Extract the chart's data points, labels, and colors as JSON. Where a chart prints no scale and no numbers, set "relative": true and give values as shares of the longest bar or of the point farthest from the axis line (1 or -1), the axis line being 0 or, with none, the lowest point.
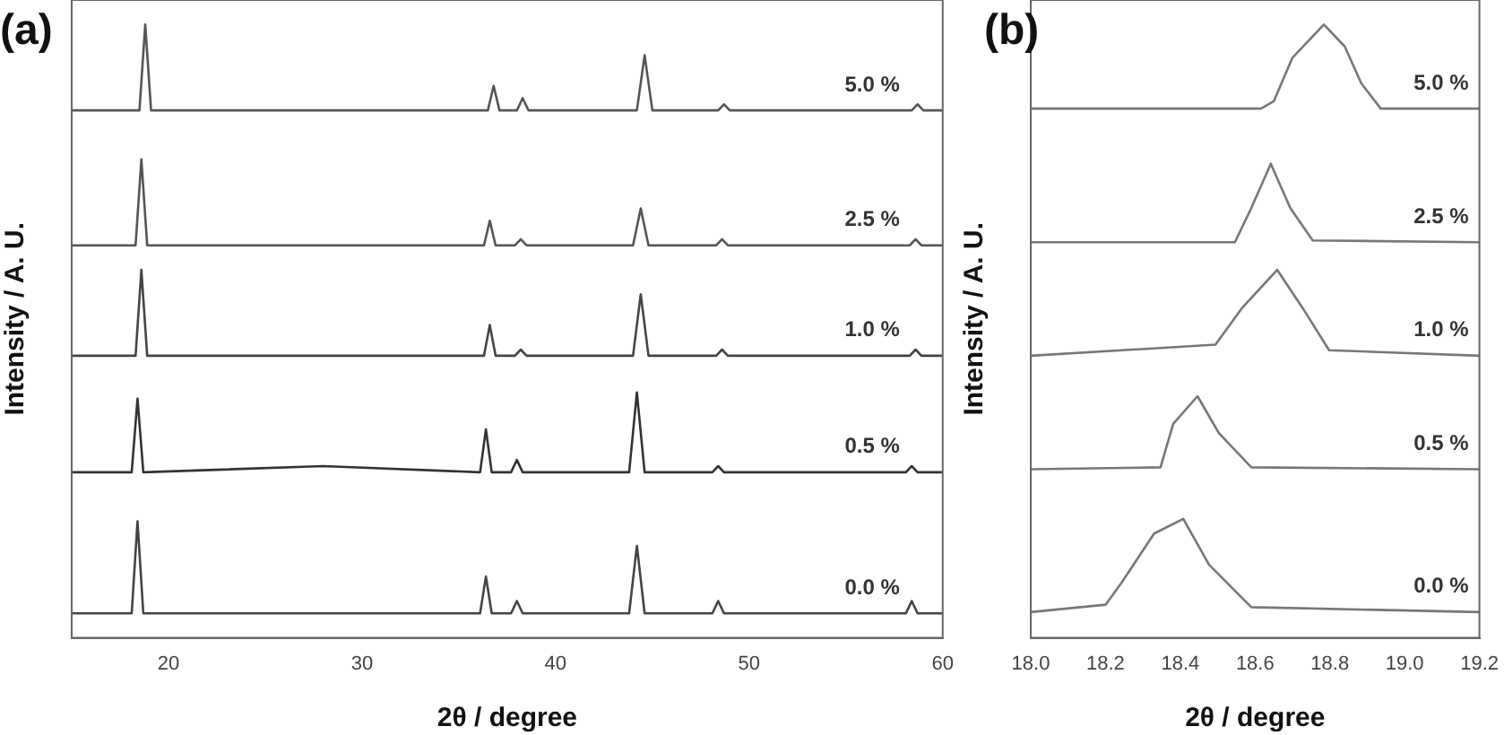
{
  "chart_data": [
    {
      "type": "line",
      "title": "(a)",
      "xlabel": "2θ / degree",
      "ylabel": "Intensity / A. U.",
      "relative": true,
      "legend": false,
      "grid": false,
      "xlim": [
        15,
        60
      ],
      "xticks": [
        20,
        30,
        40,
        50,
        60
      ],
      "series": [
        {
          "name": "5.0 %",
          "color": "#555555",
          "x": [
            15,
            18.5,
            18.8,
            19.1,
            36.5,
            36.8,
            37.1,
            38.0,
            38.3,
            38.6,
            44.2,
            44.6,
            45.0,
            48.4,
            48.7,
            49.0,
            58.4,
            58.7,
            59.0,
            60
          ],
          "values": [
            0.86,
            0.86,
            1.0,
            0.86,
            0.86,
            0.9,
            0.86,
            0.86,
            0.88,
            0.86,
            0.86,
            0.95,
            0.86,
            0.86,
            0.87,
            0.86,
            0.86,
            0.87,
            0.86,
            0.86
          ]
        },
        {
          "name": "2.5 %",
          "color": "#555555",
          "x": [
            15,
            18.3,
            18.6,
            18.9,
            36.3,
            36.6,
            36.9,
            37.9,
            38.2,
            38.5,
            44.0,
            44.4,
            44.8,
            48.3,
            48.6,
            48.9,
            58.3,
            58.6,
            58.9,
            60
          ],
          "values": [
            0.64,
            0.64,
            0.78,
            0.64,
            0.64,
            0.68,
            0.64,
            0.64,
            0.65,
            0.64,
            0.64,
            0.7,
            0.64,
            0.64,
            0.65,
            0.64,
            0.64,
            0.65,
            0.64,
            0.64
          ]
        },
        {
          "name": "1.0 %",
          "color": "#444444",
          "x": [
            15,
            18.3,
            18.6,
            18.9,
            36.3,
            36.6,
            36.9,
            37.9,
            38.2,
            38.5,
            44.0,
            44.4,
            44.8,
            48.3,
            48.6,
            48.9,
            58.3,
            58.6,
            58.9,
            60
          ],
          "values": [
            0.46,
            0.46,
            0.6,
            0.46,
            0.46,
            0.51,
            0.46,
            0.46,
            0.47,
            0.46,
            0.46,
            0.56,
            0.46,
            0.46,
            0.47,
            0.46,
            0.46,
            0.47,
            0.46,
            0.46
          ]
        },
        {
          "name": "0.5 %",
          "color": "#333333",
          "x": [
            15,
            18.1,
            18.4,
            18.7,
            28,
            36.1,
            36.4,
            36.7,
            37.7,
            38.0,
            38.3,
            43.8,
            44.2,
            44.6,
            48.1,
            48.4,
            48.7,
            58.1,
            58.4,
            58.7,
            60
          ],
          "values": [
            0.27,
            0.27,
            0.39,
            0.27,
            0.28,
            0.27,
            0.34,
            0.27,
            0.27,
            0.29,
            0.27,
            0.27,
            0.4,
            0.27,
            0.27,
            0.28,
            0.27,
            0.27,
            0.28,
            0.27,
            0.27
          ]
        },
        {
          "name": "0.0 %",
          "color": "#444444",
          "x": [
            15,
            18.1,
            18.4,
            18.7,
            36.1,
            36.4,
            36.7,
            37.7,
            38.0,
            38.3,
            43.8,
            44.2,
            44.6,
            48.1,
            48.4,
            48.7,
            58.1,
            58.4,
            58.7,
            60
          ],
          "values": [
            0.04,
            0.04,
            0.19,
            0.04,
            0.04,
            0.1,
            0.04,
            0.04,
            0.06,
            0.04,
            0.04,
            0.15,
            0.04,
            0.04,
            0.06,
            0.04,
            0.04,
            0.06,
            0.04,
            0.04
          ]
        }
      ]
    },
    {
      "type": "line",
      "title": "(b)",
      "xlabel": "2θ / degree",
      "ylabel": "Intensity / A. U.",
      "relative": true,
      "legend": false,
      "grid": false,
      "xlim": [
        18.0,
        19.2
      ],
      "xticks": [
        {
          "value": 18.0,
          "label": "18.0"
        },
        {
          "value": 18.2,
          "label": "18.2"
        },
        {
          "value": 18.4,
          "label": "18.4"
        },
        {
          "value": 18.6,
          "label": "18.6"
        },
        {
          "value": 18.8,
          "label": "18.8"
        },
        {
          "value": 19.0,
          "label": "19.0"
        },
        {
          "value": 19.2,
          "label": "19.2"
        }
      ],
      "series": [
        {
          "name": "5.0 %",
          "color": "#777777",
          "x": [
            18.0,
            18.616,
            18.65,
            18.7,
            18.784,
            18.84,
            18.884,
            18.936,
            19.2
          ],
          "values": [
            0.863,
            0.863,
            0.875,
            0.946,
            1.0,
            0.964,
            0.904,
            0.863,
            0.863
          ]
        },
        {
          "name": "2.5 %",
          "color": "#777777",
          "x": [
            18.0,
            18.546,
            18.59,
            18.642,
            18.694,
            18.754,
            19.2
          ],
          "values": [
            0.645,
            0.645,
            0.701,
            0.773,
            0.701,
            0.648,
            0.645
          ]
        },
        {
          "name": "1.0 %",
          "color": "#777777",
          "x": [
            18.0,
            18.494,
            18.564,
            18.659,
            18.728,
            18.798,
            19.2
          ],
          "values": [
            0.46,
            0.478,
            0.537,
            0.6,
            0.537,
            0.469,
            0.46
          ]
        },
        {
          "name": "0.5 %",
          "color": "#777777",
          "x": [
            18.0,
            18.347,
            18.381,
            18.446,
            18.503,
            18.59,
            19.2
          ],
          "values": [
            0.275,
            0.278,
            0.349,
            0.394,
            0.334,
            0.278,
            0.275
          ]
        },
        {
          "name": "0.0 %",
          "color": "#777777",
          "x": [
            18.0,
            18.2,
            18.243,
            18.33,
            18.408,
            18.477,
            18.59,
            19.2
          ],
          "values": [
            0.042,
            0.054,
            0.09,
            0.17,
            0.194,
            0.119,
            0.05,
            0.042
          ]
        }
      ]
    }
  ]
}
